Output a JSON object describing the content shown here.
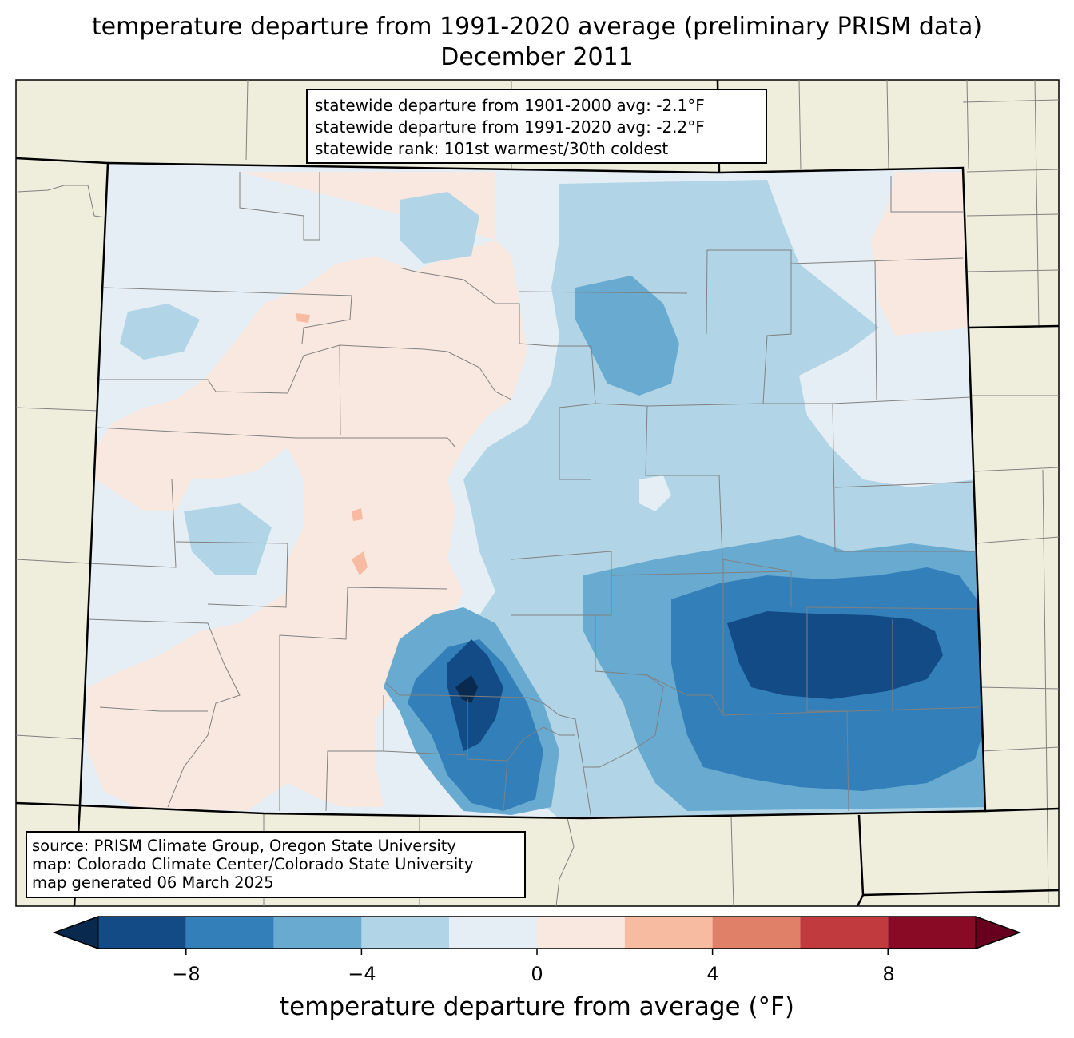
{
  "title": {
    "line1": "temperature departure from 1991-2020 average (preliminary PRISM data)",
    "line2": "December 2011"
  },
  "stats_box": {
    "line1": "statewide departure from 1901-2000 avg: -2.1°F",
    "line2": "statewide departure from 1991-2020 avg: -2.2°F",
    "line3": "statewide rank: 101st warmest/30th coldest"
  },
  "source_box": {
    "line1": "source: PRISM Climate Group, Oregon State University",
    "line2": "map: Colorado Climate Center/Colorado State University",
    "line3": "map generated 06 March 2025"
  },
  "colorbar": {
    "label": "temperature departure from average (°F)",
    "ticks": [
      "−8",
      "−4",
      "0",
      "4",
      "8"
    ],
    "range": [
      -10,
      10
    ],
    "bins": [
      {
        "from": -10,
        "to": -8,
        "color": "#134b87"
      },
      {
        "from": -8,
        "to": -6,
        "color": "#337fb9"
      },
      {
        "from": -6,
        "to": -4,
        "color": "#68aad0"
      },
      {
        "from": -4,
        "to": -2,
        "color": "#b1d5e7"
      },
      {
        "from": -2,
        "to": 0,
        "color": "#e5eef5"
      },
      {
        "from": 0,
        "to": 2,
        "color": "#f9e8df"
      },
      {
        "from": 2,
        "to": 4,
        "color": "#f7bba1"
      },
      {
        "from": 4,
        "to": 6,
        "color": "#e18068"
      },
      {
        "from": 6,
        "to": 8,
        "color": "#c13a3e"
      },
      {
        "from": 8,
        "to": 10,
        "color": "#880a25"
      }
    ],
    "under_color": "#09294f",
    "over_color": "#67001f"
  },
  "colors": {
    "land": "#efeedc",
    "state_border": "#000000",
    "county_border": "#808080"
  }
}
